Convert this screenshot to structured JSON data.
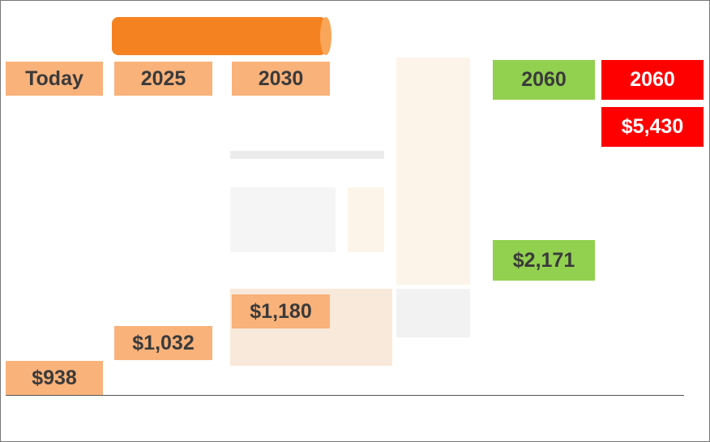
{
  "columns": [
    {
      "year": "Today",
      "cost": "$938"
    },
    {
      "year": "2025",
      "cost": "$1,032"
    },
    {
      "year": "2030",
      "cost": "$1,180"
    }
  ],
  "scenarios": [
    {
      "year": "2060",
      "cost": "$2,171"
    },
    {
      "year": "2060",
      "cost": "$5,430"
    }
  ]
}
